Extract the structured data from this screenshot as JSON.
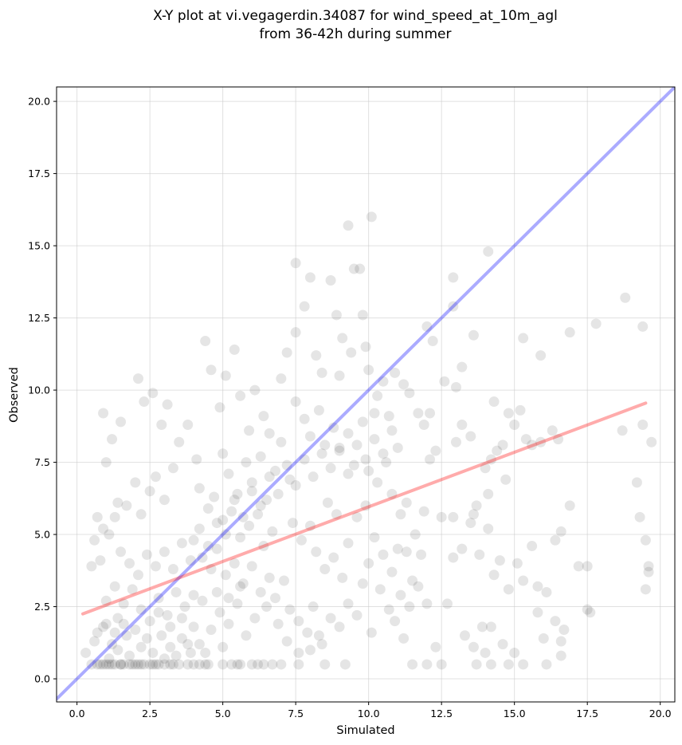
{
  "chart_data": {
    "type": "scatter",
    "title_lines": [
      "X-Y plot at vi.vegagerdin.34087 for wind_speed_at_10m_agl",
      "from 36-42h during summer"
    ],
    "xlabel": "Simulated",
    "ylabel": "Observed",
    "xlim": [
      -0.7,
      20.5
    ],
    "ylim": [
      -0.8,
      20.5
    ],
    "xticks": [
      0.0,
      2.5,
      5.0,
      7.5,
      10.0,
      12.5,
      15.0,
      17.5,
      20.0
    ],
    "yticks": [
      0.0,
      2.5,
      5.0,
      7.5,
      10.0,
      12.5,
      15.0,
      17.5,
      20.0
    ],
    "xtick_labels": [
      "0.0",
      "2.5",
      "5.0",
      "7.5",
      "10.0",
      "12.5",
      "15.0",
      "17.5",
      "20.0"
    ],
    "ytick_labels": [
      "0.0",
      "2.5",
      "5.0",
      "7.5",
      "10.0",
      "12.5",
      "15.0",
      "17.5",
      "20.0"
    ],
    "grid": true,
    "point_color": "#000000",
    "point_alpha": 0.1,
    "identity_line": {
      "color": "#0000ff",
      "x": [
        -0.7,
        20.5
      ],
      "y": [
        -0.7,
        20.5
      ]
    },
    "fit_line": {
      "color": "#ff0000",
      "x": [
        0.2,
        19.5
      ],
      "y": [
        2.25,
        9.55
      ]
    },
    "points": [
      [
        0.5,
        0.5
      ],
      [
        0.7,
        0.5
      ],
      [
        0.8,
        0.5
      ],
      [
        0.9,
        0.5
      ],
      [
        1.0,
        0.5
      ],
      [
        1.1,
        0.5
      ],
      [
        1.2,
        0.5
      ],
      [
        1.3,
        0.5
      ],
      [
        1.5,
        0.5
      ],
      [
        1.6,
        0.5
      ],
      [
        1.8,
        0.5
      ],
      [
        1.9,
        0.5
      ],
      [
        2.0,
        0.5
      ],
      [
        2.2,
        0.5
      ],
      [
        2.3,
        0.5
      ],
      [
        2.5,
        0.5
      ],
      [
        2.6,
        0.5
      ],
      [
        2.8,
        0.5
      ],
      [
        3.0,
        0.5
      ],
      [
        3.2,
        0.5
      ],
      [
        3.5,
        0.5
      ],
      [
        3.8,
        0.5
      ],
      [
        4.0,
        0.5
      ],
      [
        4.2,
        0.5
      ],
      [
        4.5,
        0.5
      ],
      [
        5.0,
        0.5
      ],
      [
        5.3,
        0.5
      ],
      [
        5.6,
        0.5
      ],
      [
        6.0,
        0.5
      ],
      [
        6.4,
        0.5
      ],
      [
        6.7,
        0.5
      ],
      [
        7.0,
        0.5
      ],
      [
        7.6,
        0.5
      ],
      [
        8.5,
        0.5
      ],
      [
        9.2,
        0.5
      ],
      [
        11.5,
        0.5
      ],
      [
        12.0,
        0.5
      ],
      [
        12.5,
        0.5
      ],
      [
        13.7,
        0.5
      ],
      [
        14.2,
        0.5
      ],
      [
        14.8,
        0.5
      ],
      [
        15.3,
        0.5
      ],
      [
        16.1,
        0.5
      ],
      [
        1.5,
        0.5
      ],
      [
        2.1,
        0.5
      ],
      [
        2.7,
        0.5
      ],
      [
        3.3,
        0.5
      ],
      [
        4.4,
        0.5
      ],
      [
        5.5,
        0.5
      ],
      [
        6.2,
        0.5
      ],
      [
        0.3,
        0.9
      ],
      [
        0.6,
        1.3
      ],
      [
        0.9,
        1.8
      ],
      [
        1.2,
        1.2
      ],
      [
        1.4,
        2.1
      ],
      [
        1.7,
        1.5
      ],
      [
        1.0,
        2.7
      ],
      [
        1.3,
        3.2
      ],
      [
        0.5,
        3.9
      ],
      [
        0.8,
        4.1
      ],
      [
        0.6,
        4.8
      ],
      [
        0.9,
        5.2
      ],
      [
        0.7,
        5.6
      ],
      [
        1.1,
        5.0
      ],
      [
        1.3,
        5.6
      ],
      [
        1.5,
        4.4
      ],
      [
        1.8,
        4.0
      ],
      [
        2.1,
        3.6
      ],
      [
        2.4,
        4.3
      ],
      [
        2.7,
        3.9
      ],
      [
        1.6,
        2.6
      ],
      [
        1.9,
        3.1
      ],
      [
        2.2,
        2.4
      ],
      [
        2.5,
        2.0
      ],
      [
        2.8,
        2.8
      ],
      [
        3.1,
        2.2
      ],
      [
        3.4,
        3.0
      ],
      [
        3.7,
        2.5
      ],
      [
        4.0,
        1.8
      ],
      [
        4.3,
        2.7
      ],
      [
        2.9,
        1.5
      ],
      [
        3.2,
        1.1
      ],
      [
        3.6,
        1.4
      ],
      [
        3.9,
        0.9
      ],
      [
        4.2,
        1.2
      ],
      [
        4.6,
        1.7
      ],
      [
        4.9,
        2.3
      ],
      [
        5.2,
        1.9
      ],
      [
        5.5,
        2.6
      ],
      [
        5.8,
        1.5
      ],
      [
        1.0,
        7.5
      ],
      [
        1.2,
        8.3
      ],
      [
        1.4,
        6.1
      ],
      [
        1.7,
        6.0
      ],
      [
        2.0,
        6.8
      ],
      [
        2.2,
        5.7
      ],
      [
        2.5,
        6.5
      ],
      [
        2.7,
        7.0
      ],
      [
        3.0,
        6.2
      ],
      [
        3.3,
        7.3
      ],
      [
        0.9,
        9.2
      ],
      [
        1.5,
        8.9
      ],
      [
        2.1,
        10.4
      ],
      [
        2.3,
        9.6
      ],
      [
        2.6,
        9.9
      ],
      [
        2.9,
        8.8
      ],
      [
        3.1,
        9.5
      ],
      [
        3.5,
        8.2
      ],
      [
        3.8,
        8.8
      ],
      [
        4.1,
        7.6
      ],
      [
        4.4,
        11.7
      ],
      [
        4.6,
        10.7
      ],
      [
        4.9,
        9.4
      ],
      [
        5.1,
        10.5
      ],
      [
        5.4,
        11.4
      ],
      [
        5.6,
        9.8
      ],
      [
        5.9,
        8.6
      ],
      [
        6.1,
        10.0
      ],
      [
        6.4,
        9.1
      ],
      [
        6.6,
        8.5
      ],
      [
        5.0,
        7.8
      ],
      [
        5.2,
        7.1
      ],
      [
        5.5,
        6.4
      ],
      [
        5.8,
        7.5
      ],
      [
        6.0,
        6.8
      ],
      [
        6.3,
        7.7
      ],
      [
        6.5,
        6.2
      ],
      [
        6.8,
        7.2
      ],
      [
        7.0,
        8.2
      ],
      [
        7.3,
        6.9
      ],
      [
        4.2,
        6.6
      ],
      [
        4.5,
        5.9
      ],
      [
        4.7,
        6.3
      ],
      [
        5.0,
        5.5
      ],
      [
        5.3,
        5.8
      ],
      [
        5.6,
        4.9
      ],
      [
        5.9,
        5.3
      ],
      [
        6.2,
        5.7
      ],
      [
        6.4,
        4.6
      ],
      [
        6.7,
        5.1
      ],
      [
        4.0,
        4.8
      ],
      [
        4.3,
        4.2
      ],
      [
        4.6,
        3.8
      ],
      [
        4.8,
        4.5
      ],
      [
        5.1,
        3.6
      ],
      [
        5.4,
        4.0
      ],
      [
        5.7,
        3.3
      ],
      [
        6.0,
        3.9
      ],
      [
        6.3,
        3.0
      ],
      [
        6.6,
        3.5
      ],
      [
        6.8,
        2.8
      ],
      [
        7.1,
        3.4
      ],
      [
        7.3,
        2.4
      ],
      [
        7.6,
        2.0
      ],
      [
        7.9,
        1.6
      ],
      [
        8.1,
        2.5
      ],
      [
        8.4,
        1.2
      ],
      [
        8.7,
        2.1
      ],
      [
        9.0,
        1.8
      ],
      [
        9.3,
        2.6
      ],
      [
        7.0,
        10.4
      ],
      [
        7.2,
        11.3
      ],
      [
        7.5,
        12.0
      ],
      [
        7.5,
        14.4
      ],
      [
        7.8,
        12.9
      ],
      [
        8.0,
        13.9
      ],
      [
        8.2,
        11.2
      ],
      [
        8.4,
        10.6
      ],
      [
        8.7,
        13.8
      ],
      [
        8.9,
        12.6
      ],
      [
        9.1,
        11.8
      ],
      [
        9.3,
        15.7
      ],
      [
        9.5,
        14.2
      ],
      [
        9.7,
        14.2
      ],
      [
        9.8,
        12.6
      ],
      [
        10.1,
        16.0
      ],
      [
        9.0,
        10.5
      ],
      [
        9.4,
        11.3
      ],
      [
        9.9,
        11.5
      ],
      [
        10.3,
        9.8
      ],
      [
        7.5,
        9.6
      ],
      [
        7.8,
        9.0
      ],
      [
        8.0,
        8.4
      ],
      [
        8.3,
        9.3
      ],
      [
        8.5,
        8.1
      ],
      [
        8.8,
        8.7
      ],
      [
        9.0,
        8.0
      ],
      [
        9.3,
        8.5
      ],
      [
        9.5,
        7.4
      ],
      [
        9.8,
        8.9
      ],
      [
        10.0,
        10.7
      ],
      [
        10.2,
        9.2
      ],
      [
        10.5,
        10.3
      ],
      [
        10.7,
        9.1
      ],
      [
        10.9,
        10.6
      ],
      [
        11.2,
        10.2
      ],
      [
        11.4,
        9.9
      ],
      [
        11.7,
        9.2
      ],
      [
        11.9,
        8.8
      ],
      [
        12.1,
        9.2
      ],
      [
        10.0,
        7.2
      ],
      [
        10.3,
        6.8
      ],
      [
        10.6,
        7.5
      ],
      [
        10.8,
        6.4
      ],
      [
        11.1,
        5.7
      ],
      [
        11.3,
        6.1
      ],
      [
        11.6,
        5.0
      ],
      [
        11.9,
        5.8
      ],
      [
        12.1,
        7.6
      ],
      [
        12.3,
        7.9
      ],
      [
        10.2,
        4.9
      ],
      [
        10.5,
        4.3
      ],
      [
        10.8,
        3.7
      ],
      [
        11.0,
        4.5
      ],
      [
        11.3,
        4.4
      ],
      [
        11.5,
        3.4
      ],
      [
        11.8,
        4.3
      ],
      [
        12.0,
        2.6
      ],
      [
        12.3,
        1.1
      ],
      [
        11.2,
        1.4
      ],
      [
        10.4,
        3.1
      ],
      [
        10.7,
        2.4
      ],
      [
        10.9,
        2.0
      ],
      [
        11.1,
        2.9
      ],
      [
        11.4,
        2.5
      ],
      [
        11.7,
        3.2
      ],
      [
        10.1,
        1.6
      ],
      [
        9.6,
        2.2
      ],
      [
        9.8,
        3.3
      ],
      [
        10.0,
        4.0
      ],
      [
        12.0,
        12.2
      ],
      [
        12.2,
        11.7
      ],
      [
        12.6,
        10.3
      ],
      [
        12.9,
        12.9
      ],
      [
        12.9,
        13.9
      ],
      [
        13.0,
        10.1
      ],
      [
        13.2,
        10.8
      ],
      [
        13.6,
        11.9
      ],
      [
        14.1,
        14.8
      ],
      [
        14.3,
        9.6
      ],
      [
        13.0,
        8.2
      ],
      [
        13.2,
        8.8
      ],
      [
        13.5,
        8.4
      ],
      [
        13.7,
        6.0
      ],
      [
        14.0,
        7.3
      ],
      [
        14.2,
        7.6
      ],
      [
        14.4,
        7.9
      ],
      [
        14.6,
        8.1
      ],
      [
        14.8,
        9.2
      ],
      [
        15.0,
        8.8
      ],
      [
        15.2,
        9.3
      ],
      [
        15.4,
        8.3
      ],
      [
        15.6,
        8.1
      ],
      [
        15.9,
        8.2
      ],
      [
        16.3,
        8.6
      ],
      [
        16.5,
        8.3
      ],
      [
        15.3,
        11.8
      ],
      [
        15.9,
        11.2
      ],
      [
        16.9,
        12.0
      ],
      [
        17.8,
        12.3
      ],
      [
        12.5,
        5.6
      ],
      [
        12.9,
        5.6
      ],
      [
        13.2,
        4.5
      ],
      [
        13.6,
        5.7
      ],
      [
        13.8,
        4.3
      ],
      [
        14.1,
        5.2
      ],
      [
        14.3,
        3.6
      ],
      [
        14.5,
        4.1
      ],
      [
        14.8,
        3.1
      ],
      [
        15.1,
        4.0
      ],
      [
        15.3,
        3.4
      ],
      [
        15.6,
        4.6
      ],
      [
        15.8,
        3.2
      ],
      [
        16.1,
        3.0
      ],
      [
        16.4,
        4.8
      ],
      [
        16.6,
        5.1
      ],
      [
        16.9,
        6.0
      ],
      [
        17.2,
        3.9
      ],
      [
        17.5,
        3.9
      ],
      [
        17.5,
        2.4
      ],
      [
        13.3,
        1.5
      ],
      [
        13.6,
        1.1
      ],
      [
        14.2,
        1.8
      ],
      [
        14.6,
        1.2
      ],
      [
        15.0,
        0.9
      ],
      [
        15.8,
        2.3
      ],
      [
        16.0,
        1.4
      ],
      [
        16.4,
        2.0
      ],
      [
        16.7,
        1.7
      ],
      [
        16.6,
        1.3
      ],
      [
        18.7,
        8.6
      ],
      [
        18.8,
        13.2
      ],
      [
        19.2,
        6.8
      ],
      [
        19.3,
        5.6
      ],
      [
        19.4,
        8.8
      ],
      [
        19.4,
        12.2
      ],
      [
        19.5,
        4.8
      ],
      [
        19.5,
        3.1
      ],
      [
        19.6,
        3.9
      ],
      [
        19.6,
        3.7
      ],
      [
        19.7,
        8.2
      ],
      [
        17.6,
        2.3
      ],
      [
        16.6,
        0.8
      ],
      [
        14.0,
        0.9
      ],
      [
        13.9,
        1.8
      ],
      [
        12.7,
        2.6
      ],
      [
        12.9,
        4.2
      ],
      [
        13.5,
        5.4
      ],
      [
        14.1,
        6.4
      ],
      [
        14.7,
        6.9
      ],
      [
        1.1,
        0.7
      ],
      [
        1.4,
        1.0
      ],
      [
        1.8,
        0.8
      ],
      [
        2.2,
        1.1
      ],
      [
        2.6,
        0.9
      ],
      [
        3.0,
        0.7
      ],
      [
        3.4,
        0.8
      ],
      [
        3.8,
        1.2
      ],
      [
        4.4,
        0.9
      ],
      [
        5.0,
        1.1
      ],
      [
        0.7,
        1.6
      ],
      [
        1.0,
        1.9
      ],
      [
        1.3,
        1.6
      ],
      [
        1.6,
        1.9
      ],
      [
        2.0,
        1.7
      ],
      [
        2.4,
        1.4
      ],
      [
        2.8,
        2.3
      ],
      [
        3.2,
        1.8
      ],
      [
        3.6,
        2.1
      ],
      [
        4.0,
        2.9
      ],
      [
        4.8,
        3.0
      ],
      [
        5.2,
        2.8
      ],
      [
        5.6,
        3.2
      ],
      [
        6.1,
        2.1
      ],
      [
        6.5,
        2.5
      ],
      [
        6.9,
        1.9
      ],
      [
        7.2,
        1.3
      ],
      [
        7.6,
        0.9
      ],
      [
        8.0,
        1.0
      ],
      [
        8.3,
        1.5
      ],
      [
        3.0,
        4.4
      ],
      [
        3.3,
        3.8
      ],
      [
        3.6,
        4.7
      ],
      [
        3.9,
        4.1
      ],
      [
        4.2,
        5.2
      ],
      [
        4.5,
        4.6
      ],
      [
        4.8,
        5.4
      ],
      [
        5.1,
        5.0
      ],
      [
        5.4,
        6.2
      ],
      [
        5.7,
        5.6
      ],
      [
        6.0,
        6.5
      ],
      [
        6.3,
        6.0
      ],
      [
        6.6,
        7.0
      ],
      [
        6.9,
        6.4
      ],
      [
        7.2,
        7.4
      ],
      [
        7.5,
        6.7
      ],
      [
        7.8,
        7.6
      ],
      [
        8.1,
        7.0
      ],
      [
        8.4,
        7.8
      ],
      [
        8.7,
        7.3
      ],
      [
        9.0,
        7.9
      ],
      [
        9.3,
        7.1
      ],
      [
        9.6,
        8.1
      ],
      [
        9.9,
        7.6
      ],
      [
        10.2,
        8.3
      ],
      [
        10.5,
        7.8
      ],
      [
        10.8,
        8.6
      ],
      [
        11.0,
        8.0
      ],
      [
        7.4,
        5.4
      ],
      [
        7.7,
        4.8
      ],
      [
        8.0,
        5.3
      ],
      [
        8.2,
        4.4
      ],
      [
        8.5,
        3.8
      ],
      [
        8.8,
        4.2
      ],
      [
        9.1,
        3.5
      ],
      [
        9.3,
        4.7
      ],
      [
        9.6,
        5.6
      ],
      [
        9.9,
        6.0
      ],
      [
        8.6,
        6.1
      ],
      [
        8.9,
        5.7
      ]
    ]
  }
}
